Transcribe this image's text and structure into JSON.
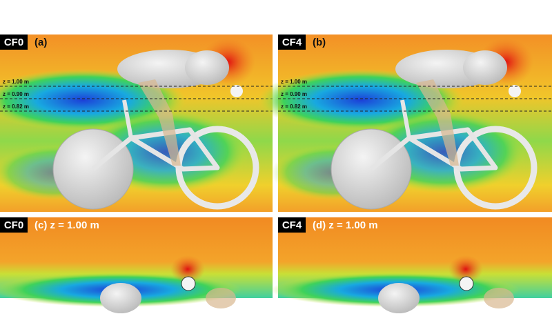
{
  "panels": [
    {
      "view": "side",
      "tag": "CF0",
      "label": "(a)",
      "z_lines": [
        "z = 1.00 m",
        "z = 0.90 m",
        "z = 0.82 m"
      ]
    },
    {
      "view": "side",
      "tag": "CF4",
      "label": "(b)",
      "z_lines": [
        "z = 1.00 m",
        "z = 0.90 m",
        "z = 0.82 m"
      ]
    },
    {
      "view": "top",
      "tag": "CF0",
      "label": "(c) z = 1.00 m"
    },
    {
      "view": "top",
      "tag": "CF4",
      "label": "(d) z = 1.00 m"
    }
  ]
}
